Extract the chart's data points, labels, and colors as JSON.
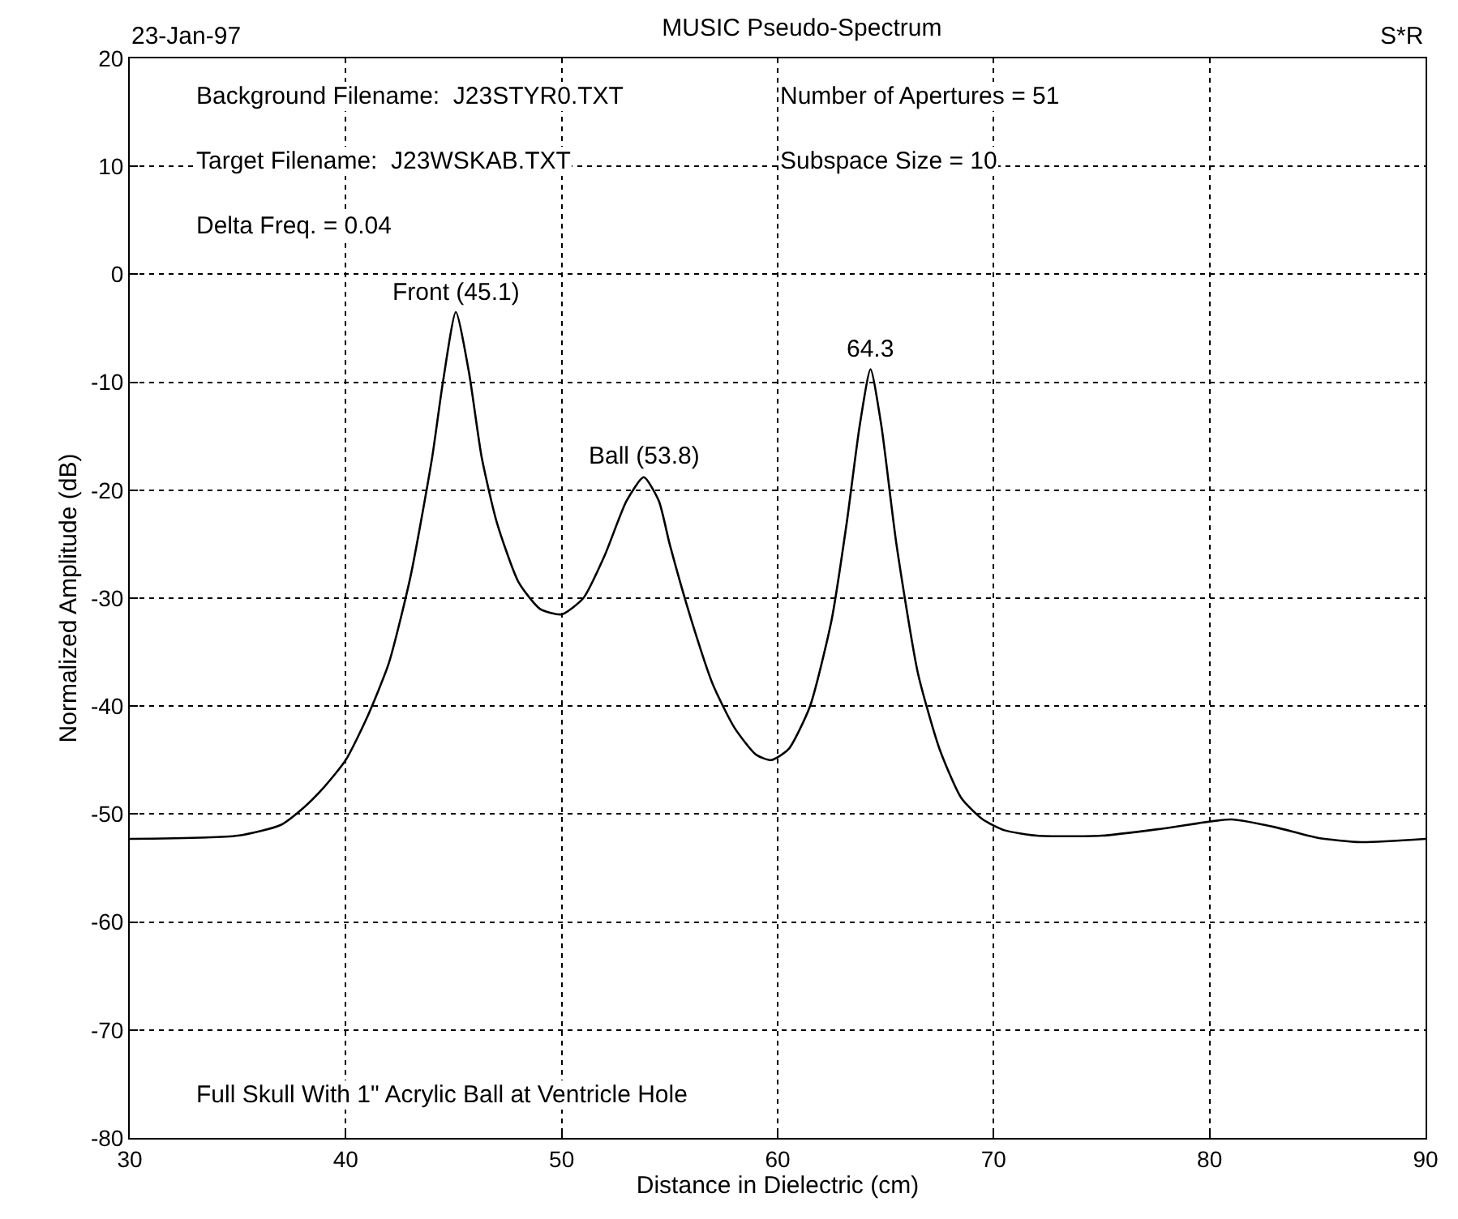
{
  "chart_data": {
    "type": "line",
    "title": "MUSIC Pseudo-Spectrum",
    "xlabel": "Distance in Dielectric (cm)",
    "ylabel": "Normalized Amplitude (dB)",
    "x": [
      30,
      35,
      37,
      38,
      39,
      40,
      41,
      42,
      43,
      44,
      44.5,
      45.1,
      45.7,
      46.3,
      47,
      48,
      49,
      50,
      51,
      52,
      53,
      53.8,
      54.5,
      55,
      56,
      57,
      58,
      59,
      59.7,
      60.5,
      61.5,
      62.5,
      63.2,
      63.8,
      64.3,
      64.8,
      65.5,
      66.5,
      67.5,
      68.5,
      69.5,
      70.5,
      72,
      75,
      78,
      81,
      83,
      85,
      87,
      90
    ],
    "series": [
      {
        "color": "#000000",
        "values": [
          -52.3,
          -52,
          -51,
          -49.5,
          -47.5,
          -45,
          -41,
          -36,
          -28,
          -17,
          -10,
          -3.5,
          -9,
          -17,
          -23,
          -28.5,
          -31,
          -31.5,
          -30,
          -26,
          -21,
          -18.8,
          -21,
          -25,
          -32,
          -38,
          -42,
          -44.5,
          -45,
          -44,
          -40,
          -32,
          -23,
          -14,
          -8.8,
          -14,
          -25,
          -37,
          -44,
          -48.5,
          -50.5,
          -51.5,
          -52,
          -52,
          -51.3,
          -50.5,
          -51.2,
          -52.2,
          -52.6,
          -52.3
        ]
      }
    ],
    "xlim": [
      30,
      90
    ],
    "xticks": [
      30,
      40,
      50,
      60,
      70,
      80,
      90
    ],
    "ylim": [
      -80,
      20
    ],
    "yticks": [
      -80,
      -70,
      -60,
      -50,
      -40,
      -30,
      -20,
      -10,
      0,
      10,
      20
    ],
    "grid": true,
    "marker": "none",
    "line_style": "solid",
    "annotations": [
      "23-Jan-97",
      "S*R",
      "Background Filename:  J23STYR0.TXT",
      "Number of Apertures = 51",
      "Target Filename:  J23WSKAB.TXT",
      "Subspace Size = 10",
      "Delta Freq. = 0.04",
      "Full Skull With 1\" Acrylic Ball at Ventricle Hole",
      {
        "text": "Front (45.1)",
        "x": 45.1,
        "y": -3.5
      },
      {
        "text": "Ball (53.8)",
        "x": 53.8,
        "y": -18.8
      },
      {
        "text": "64.3",
        "x": 64.3,
        "y": -8.8
      }
    ]
  }
}
